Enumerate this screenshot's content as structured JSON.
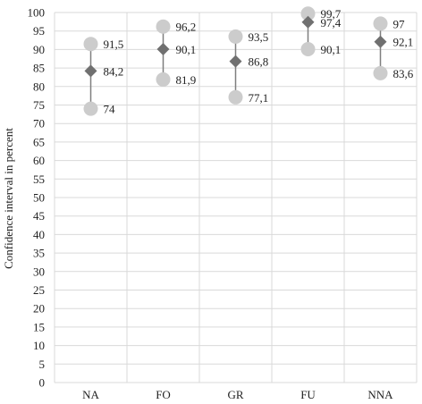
{
  "chart_data": {
    "type": "scatter",
    "ylabel": "Confidence interval in percent",
    "ylim": [
      0,
      100
    ],
    "y_tick_step": 5,
    "grid": true,
    "categories": [
      "NA",
      "FO",
      "GR",
      "FU",
      "NNA"
    ],
    "series": [
      {
        "values": [
          91.5,
          96.2,
          93.5,
          99.7,
          97
        ],
        "labels": [
          "91,5",
          "96,2",
          "93,5",
          "99,7",
          "97"
        ],
        "marker": "circle",
        "color": "#cccccc"
      },
      {
        "values": [
          84.2,
          90.1,
          86.8,
          97.4,
          92.1
        ],
        "labels": [
          "84,2",
          "90,1",
          "86,8",
          "97,4",
          "92,1"
        ],
        "marker": "diamond",
        "color": "#707070"
      },
      {
        "values": [
          74,
          81.9,
          77.1,
          90.1,
          83.6
        ],
        "labels": [
          "74",
          "81,9",
          "77,1",
          "90,1",
          "83,6"
        ],
        "marker": "circle",
        "color": "#cccccc"
      }
    ],
    "colors": {
      "grid": "#d9d9d9",
      "range_line": "#7f7f7f"
    }
  }
}
